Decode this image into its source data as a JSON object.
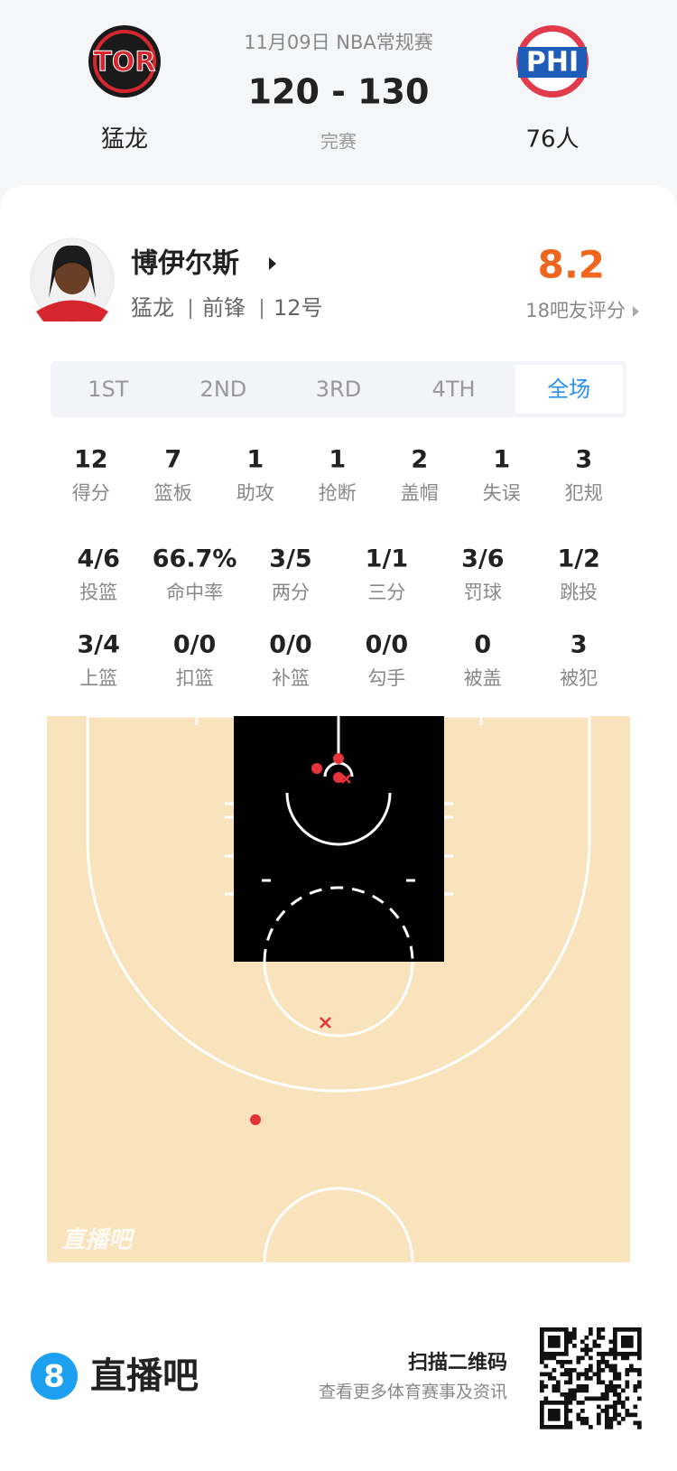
{
  "header": {
    "date": "11月09日 NBA常规赛",
    "score": "120 - 130",
    "status": "完赛",
    "home": {
      "logo": "TOR",
      "name": "猛龙"
    },
    "away": {
      "logo": "PHI",
      "name": "76人"
    }
  },
  "player": {
    "name": "博伊尔斯",
    "team": "猛龙",
    "position": "前锋",
    "number": "12号",
    "rating": "8.2",
    "rating_label": "18吧友评分"
  },
  "tabs": {
    "items": [
      "1ST",
      "2ND",
      "3RD",
      "4TH",
      "全场"
    ],
    "selected": 4
  },
  "stats": {
    "rows": [
      [
        {
          "value": "12",
          "label": "得分"
        },
        {
          "value": "7",
          "label": "篮板"
        },
        {
          "value": "1",
          "label": "助攻"
        },
        {
          "value": "1",
          "label": "抢断"
        },
        {
          "value": "2",
          "label": "盖帽"
        },
        {
          "value": "1",
          "label": "失误"
        },
        {
          "value": "3",
          "label": "犯规"
        }
      ],
      [
        {
          "value": "4/6",
          "label": "投篮"
        },
        {
          "value": "66.7%",
          "label": "命中率"
        },
        {
          "value": "3/5",
          "label": "两分"
        },
        {
          "value": "1/1",
          "label": "三分"
        },
        {
          "value": "3/6",
          "label": "罚球"
        },
        {
          "value": "1/2",
          "label": "跳投"
        }
      ],
      [
        {
          "value": "3/4",
          "label": "上篮"
        },
        {
          "value": "0/0",
          "label": "扣篮"
        },
        {
          "value": "0/0",
          "label": "补篮"
        },
        {
          "value": "0/0",
          "label": "勾手"
        },
        {
          "value": "0",
          "label": "被盖"
        },
        {
          "value": "3",
          "label": "被犯"
        }
      ]
    ]
  },
  "court": {
    "watermark": "直播吧"
  },
  "footer": {
    "logo_number": "8",
    "logo_text": "直播吧",
    "qr_title": "扫描二维码",
    "qr_subtitle": "查看更多体育赛事及资讯"
  }
}
